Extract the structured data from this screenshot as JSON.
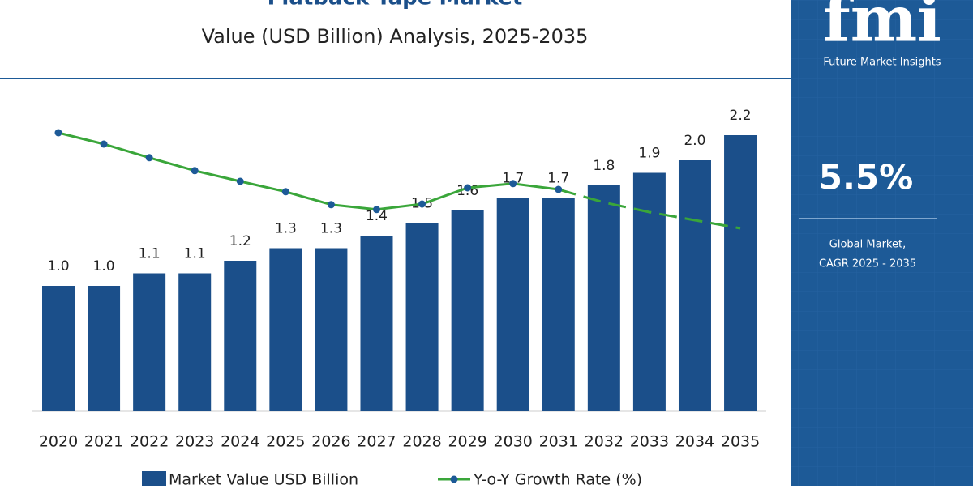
{
  "chart_data": {
    "type": "bar_line",
    "title": "Flatback Tape Market",
    "subtitle": "Value (USD Billion) Analysis, 2025-2035",
    "categories": [
      "2020",
      "2021",
      "2022",
      "2023",
      "2024",
      "2025",
      "2026",
      "2027",
      "2028",
      "2029",
      "2030",
      "2031",
      "2032",
      "2033",
      "2034",
      "2035"
    ],
    "series": [
      {
        "name": "Market Value USD Billion",
        "color": "#1b4f8a",
        "values": [
          1.0,
          1.0,
          1.1,
          1.1,
          1.2,
          1.3,
          1.3,
          1.4,
          1.5,
          1.6,
          1.7,
          1.7,
          1.8,
          1.9,
          2.0,
          2.2
        ],
        "value_labels": [
          "1.0",
          "1.0",
          "1.1",
          "1.1",
          "1.2",
          "1.3",
          "1.3",
          "1.4",
          "1.5",
          "1.6",
          "1.7",
          "1.7",
          "1.8",
          "1.9",
          "2.0",
          "2.2"
        ]
      },
      {
        "name": "Y-o-Y Growth Rate (%)",
        "color": "#3aa63a",
        "axis": "y2",
        "dashed_after": "2031",
        "values": [
          5.9,
          5.55,
          5.13,
          4.73,
          4.4,
          4.08,
          3.68,
          3.53,
          3.7,
          4.2,
          4.33,
          4.15,
          3.75,
          3.45,
          3.2,
          2.95
        ]
      }
    ],
    "ylim": [
      0,
      2.4
    ],
    "y2lim": [
      -2.7,
      6.6
    ]
  },
  "sidebar": {
    "logo": "fmi",
    "brand": "Future Market Insights",
    "cagr": "5.5%",
    "caption_line1": "Global Market,",
    "caption_line2": "CAGR 2025 - 2035"
  }
}
